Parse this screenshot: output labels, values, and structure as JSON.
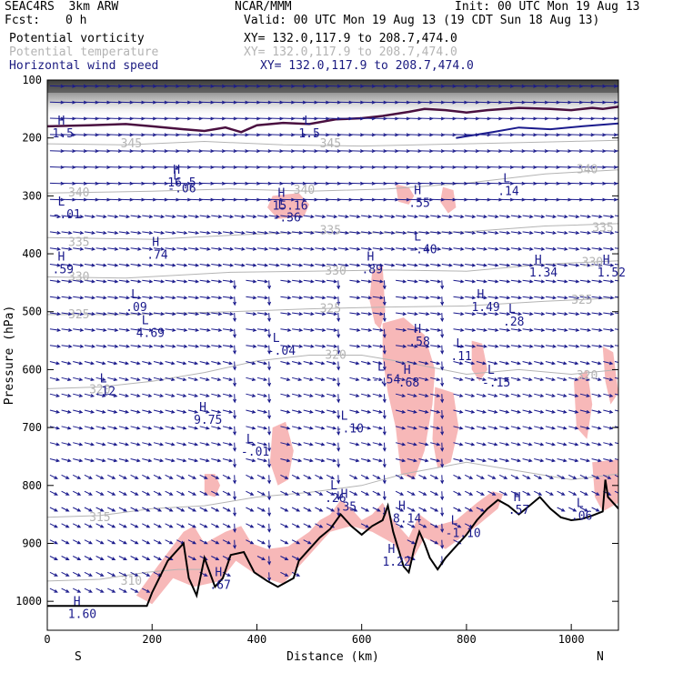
{
  "header": {
    "model": "SEAC4RS  3km ARW",
    "org": "NCAR/MMM",
    "init": "Init: 00 UTC Mon 19 Aug 13",
    "fcst_label": "Fcst:",
    "fcst_value": "0 h",
    "valid": "Valid: 00 UTC Mon 19 Aug 13 (19 CDT Sun 18 Aug 13)",
    "fields": [
      {
        "name": "Potential vorticity",
        "xy": "XY= 132.0,117.9 to 208.7,474.0",
        "color": "#000000"
      },
      {
        "name": "Potential temperature",
        "xy": "XY= 132.0,117.9 to 208.7,474.0",
        "color": "#b4b4b4"
      },
      {
        "name": "Horizontal wind speed",
        "xy": "XY= 132.0,117.9 to 208.7,474.0",
        "color": "#1a1a80"
      }
    ]
  },
  "chart_data": {
    "type": "cross-section",
    "xlabel": "Distance (km)",
    "ylabel": "Pressure (hPa)",
    "xlim": [
      0,
      1090
    ],
    "ylim": [
      1050,
      100
    ],
    "x_ticks": [
      0,
      200,
      400,
      600,
      800,
      1000
    ],
    "y_ticks": [
      100,
      200,
      300,
      400,
      500,
      600,
      700,
      800,
      900,
      1000
    ],
    "end_labels": {
      "left": "S",
      "right": "N"
    },
    "colors": {
      "pv_fill": "#f7b8b8",
      "theta": "#b4b4b4",
      "tropopause": "#4a1040",
      "wind": "#1a1a8c",
      "terrain": "#000000"
    },
    "theta_labels": [
      {
        "text": "345",
        "x": 140,
        "p": 210
      },
      {
        "text": "345",
        "x": 520,
        "p": 210
      },
      {
        "text": "340",
        "x": 40,
        "p": 295
      },
      {
        "text": "340",
        "x": 470,
        "p": 290
      },
      {
        "text": "340",
        "x": 1010,
        "p": 255
      },
      {
        "text": "335",
        "x": 40,
        "p": 380
      },
      {
        "text": "335",
        "x": 520,
        "p": 360
      },
      {
        "text": "335",
        "x": 1040,
        "p": 355
      },
      {
        "text": "330",
        "x": 40,
        "p": 440
      },
      {
        "text": "330",
        "x": 530,
        "p": 430
      },
      {
        "text": "330",
        "x": 1020,
        "p": 415
      },
      {
        "text": "325",
        "x": 40,
        "p": 505
      },
      {
        "text": "325",
        "x": 520,
        "p": 495
      },
      {
        "text": "325",
        "x": 1000,
        "p": 480
      },
      {
        "text": "320",
        "x": 80,
        "p": 635
      },
      {
        "text": "320",
        "x": 530,
        "p": 575
      },
      {
        "text": "320",
        "x": 1010,
        "p": 610
      },
      {
        "text": "315",
        "x": 80,
        "p": 855
      },
      {
        "text": "310",
        "x": 140,
        "p": 965
      }
    ],
    "pv_labels": [
      {
        "kind": "H",
        "value": "1.5",
        "x": 20,
        "p": 180
      },
      {
        "kind": "L",
        "value": "1.5",
        "x": 490,
        "p": 180
      },
      {
        "kind": "H",
        "value": "16.5",
        "x": 240,
        "p": 265
      },
      {
        "kind": "L",
        "value": "-.06",
        "x": 240,
        "p": 275
      },
      {
        "kind": "H",
        "value": "15.16",
        "x": 440,
        "p": 305
      },
      {
        "kind": "L",
        "value": "-.36",
        "x": 440,
        "p": 325
      },
      {
        "kind": "L",
        "value": "-.01",
        "x": 20,
        "p": 320
      },
      {
        "kind": "H",
        "value": ".74",
        "x": 200,
        "p": 390
      },
      {
        "kind": "H",
        "value": ".59",
        "x": 20,
        "p": 415
      },
      {
        "kind": "L",
        "value": ".09",
        "x": 160,
        "p": 480
      },
      {
        "kind": "H",
        "value": ".55",
        "x": 700,
        "p": 300
      },
      {
        "kind": "L",
        "value": "-.40",
        "x": 700,
        "p": 380
      },
      {
        "kind": "H",
        "value": ".89",
        "x": 610,
        "p": 415
      },
      {
        "kind": "L",
        "value": ".14",
        "x": 870,
        "p": 280
      },
      {
        "kind": "H",
        "value": "1.34",
        "x": 930,
        "p": 420
      },
      {
        "kind": "H",
        "value": "1.52",
        "x": 1060,
        "p": 420
      },
      {
        "kind": "H",
        "value": "1.49",
        "x": 820,
        "p": 480
      },
      {
        "kind": "L",
        "value": ".28",
        "x": 880,
        "p": 505
      },
      {
        "kind": "L",
        "value": "4.69",
        "x": 180,
        "p": 525
      },
      {
        "kind": "L",
        "value": "-.04",
        "x": 430,
        "p": 555
      },
      {
        "kind": "H",
        "value": ".58",
        "x": 700,
        "p": 540
      },
      {
        "kind": "L",
        "value": ".11",
        "x": 780,
        "p": 565
      },
      {
        "kind": "L",
        "value": "-.54",
        "x": 630,
        "p": 605
      },
      {
        "kind": "H",
        "value": ".68",
        "x": 680,
        "p": 610
      },
      {
        "kind": "L",
        "value": "-.15",
        "x": 840,
        "p": 610
      },
      {
        "kind": "L",
        "value": ".12",
        "x": 100,
        "p": 625
      },
      {
        "kind": "H",
        "value": "9.75",
        "x": 290,
        "p": 675
      },
      {
        "kind": "L",
        "value": "-.10",
        "x": 560,
        "p": 690
      },
      {
        "kind": "L",
        "value": "-.01",
        "x": 380,
        "p": 730
      },
      {
        "kind": "L",
        "value": ".26",
        "x": 540,
        "p": 810
      },
      {
        "kind": "H",
        "value": ".35",
        "x": 560,
        "p": 825
      },
      {
        "kind": "H",
        "value": ".57",
        "x": 890,
        "p": 830
      },
      {
        "kind": "L",
        "value": ".06",
        "x": 1010,
        "p": 840
      },
      {
        "kind": "H",
        "value": "8.14",
        "x": 670,
        "p": 845
      },
      {
        "kind": "L",
        "value": "-1.10",
        "x": 770,
        "p": 870
      },
      {
        "kind": "H",
        "value": "1.22",
        "x": 650,
        "p": 920
      },
      {
        "kind": "H",
        "value": ".67",
        "x": 320,
        "p": 960
      },
      {
        "kind": "H",
        "value": "1.60",
        "x": 50,
        "p": 1010
      }
    ]
  }
}
